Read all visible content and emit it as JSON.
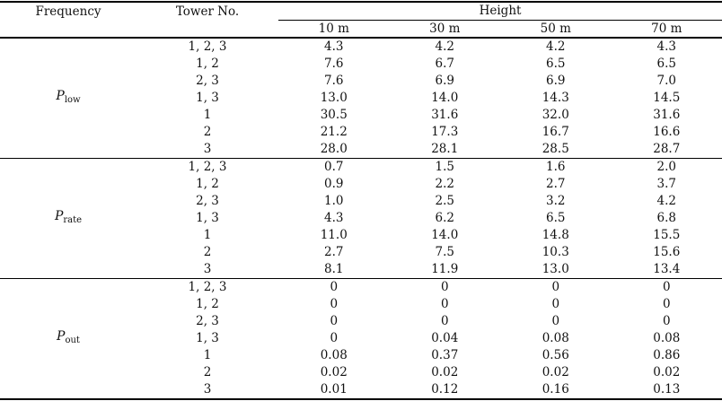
{
  "page": {
    "background": "#ffffff",
    "text_color": "#111111"
  },
  "table": {
    "header": {
      "frequency": "Frequency",
      "tower": "Tower No.",
      "height_group": "Height",
      "height_columns": [
        "10 m",
        "30 m",
        "50 m",
        "70 m"
      ]
    },
    "sections": [
      {
        "frequency_base": "P",
        "frequency_sub": "low",
        "rows": [
          {
            "tower": "1, 2, 3",
            "values": [
              "4.3",
              "4.2",
              "4.2",
              "4.3"
            ]
          },
          {
            "tower": "1, 2",
            "values": [
              "7.6",
              "6.7",
              "6.5",
              "6.5"
            ]
          },
          {
            "tower": "2, 3",
            "values": [
              "7.6",
              "6.9",
              "6.9",
              "7.0"
            ]
          },
          {
            "tower": "1, 3",
            "values": [
              "13.0",
              "14.0",
              "14.3",
              "14.5"
            ]
          },
          {
            "tower": "1",
            "values": [
              "30.5",
              "31.6",
              "32.0",
              "31.6"
            ]
          },
          {
            "tower": "2",
            "values": [
              "21.2",
              "17.3",
              "16.7",
              "16.6"
            ]
          },
          {
            "tower": "3",
            "values": [
              "28.0",
              "28.1",
              "28.5",
              "28.7"
            ]
          }
        ]
      },
      {
        "frequency_base": "P",
        "frequency_sub": "rate",
        "rows": [
          {
            "tower": "1, 2, 3",
            "values": [
              "0.7",
              "1.5",
              "1.6",
              "2.0"
            ]
          },
          {
            "tower": "1, 2",
            "values": [
              "0.9",
              "2.2",
              "2.7",
              "3.7"
            ]
          },
          {
            "tower": "2, 3",
            "values": [
              "1.0",
              "2.5",
              "3.2",
              "4.2"
            ]
          },
          {
            "tower": "1, 3",
            "values": [
              "4.3",
              "6.2",
              "6.5",
              "6.8"
            ]
          },
          {
            "tower": "1",
            "values": [
              "11.0",
              "14.0",
              "14.8",
              "15.5"
            ]
          },
          {
            "tower": "2",
            "values": [
              "2.7",
              "7.5",
              "10.3",
              "15.6"
            ]
          },
          {
            "tower": "3",
            "values": [
              "8.1",
              "11.9",
              "13.0",
              "13.4"
            ]
          }
        ]
      },
      {
        "frequency_base": "P",
        "frequency_sub": "out",
        "rows": [
          {
            "tower": "1, 2, 3",
            "values": [
              "0",
              "0",
              "0",
              "0"
            ]
          },
          {
            "tower": "1, 2",
            "values": [
              "0",
              "0",
              "0",
              "0"
            ]
          },
          {
            "tower": "2, 3",
            "values": [
              "0",
              "0",
              "0",
              "0"
            ]
          },
          {
            "tower": "1, 3",
            "values": [
              "0",
              "0.04",
              "0.08",
              "0.08"
            ]
          },
          {
            "tower": "1",
            "values": [
              "0.08",
              "0.37",
              "0.56",
              "0.86"
            ]
          },
          {
            "tower": "2",
            "values": [
              "0.02",
              "0.02",
              "0.02",
              "0.02"
            ]
          },
          {
            "tower": "3",
            "values": [
              "0.01",
              "0.12",
              "0.16",
              "0.13"
            ]
          }
        ]
      }
    ]
  }
}
